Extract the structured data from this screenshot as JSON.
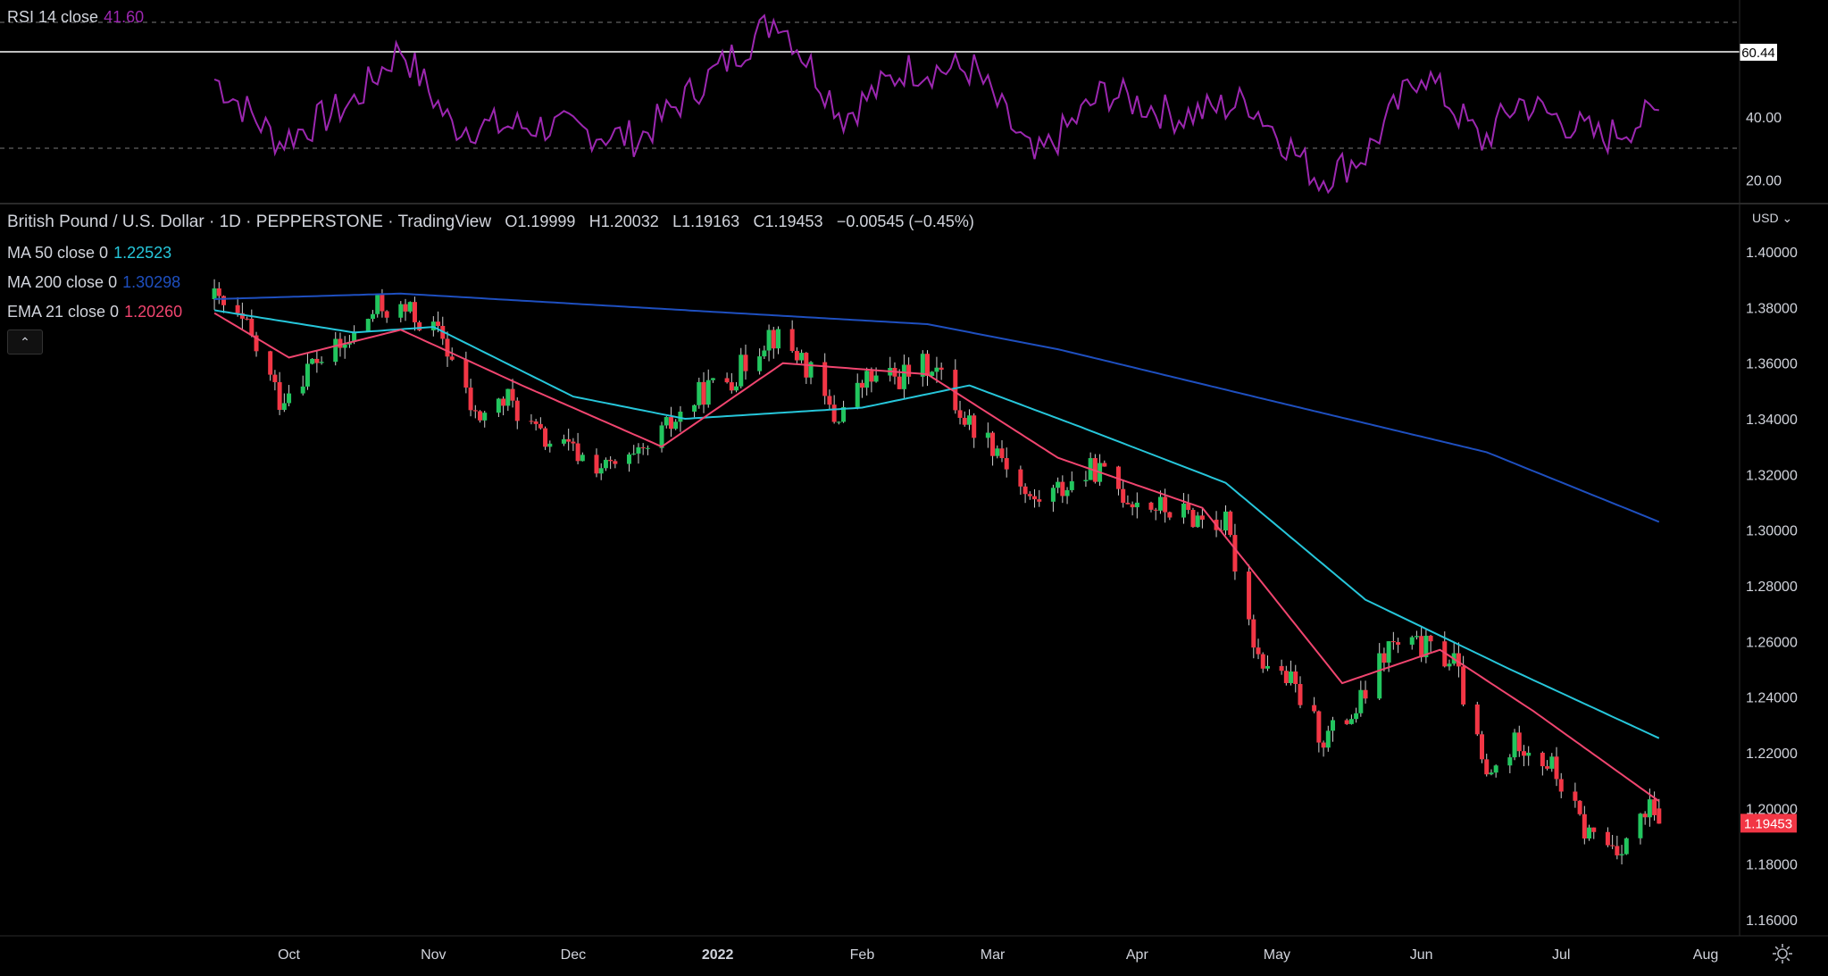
{
  "rsi_pane": {
    "label": "RSI 14 close",
    "value": "41.60",
    "value_color": "#9c27b0",
    "line_color": "#9c27b0",
    "upper_band": 70,
    "lower_band": 30,
    "ticks": [
      "40.00",
      "20.00"
    ],
    "marker_value": "60.44"
  },
  "main_pane": {
    "symbol": "British Pound / U.S. Dollar",
    "interval": "1D",
    "broker": "PEPPERSTONE",
    "source": "TradingView",
    "ohlc": {
      "o": "O1.19999",
      "h": "H1.20032",
      "l": "L1.19163",
      "c": "C1.19453",
      "change": "−0.00545 (−0.45%)"
    },
    "currency": "USD",
    "last_price": "1.19453",
    "last_price_color": "#f23645",
    "indicators": [
      {
        "label": "MA 50 close 0",
        "value": "1.22523",
        "color": "#26c6da"
      },
      {
        "label": "MA 200 close 0",
        "value": "1.30298",
        "color": "#1e4fbf"
      },
      {
        "label": "EMA 21 close 0",
        "value": "1.20260",
        "color": "#f0456f"
      }
    ],
    "price_ticks": [
      "1.40000",
      "1.38000",
      "1.36000",
      "1.34000",
      "1.32000",
      "1.30000",
      "1.28000",
      "1.26000",
      "1.24000",
      "1.22000",
      "1.20000",
      "1.18000",
      "1.16000"
    ],
    "time_ticks": [
      "Oct",
      "Nov",
      "Dec",
      "2022",
      "Feb",
      "Mar",
      "Apr",
      "May",
      "Jun",
      "Jul",
      "Aug"
    ],
    "collapse_icon": "chevron-up-icon",
    "settings_icon": "gear-icon"
  },
  "chart_data": {
    "type": "candlestick",
    "symbol": "GBPUSD",
    "ylim": [
      1.155,
      1.405
    ],
    "up_color": "#22c55e",
    "down_color": "#f23645",
    "closes": [
      {
        "d": "2021-09-15",
        "c": 1.383
      },
      {
        "d": "2021-09-22",
        "c": 1.372
      },
      {
        "d": "2021-09-29",
        "c": 1.347
      },
      {
        "d": "2021-10-06",
        "c": 1.36
      },
      {
        "d": "2021-10-13",
        "c": 1.366
      },
      {
        "d": "2021-10-20",
        "c": 1.38
      },
      {
        "d": "2021-10-27",
        "c": 1.378
      },
      {
        "d": "2021-11-03",
        "c": 1.369
      },
      {
        "d": "2021-11-10",
        "c": 1.34
      },
      {
        "d": "2021-11-17",
        "c": 1.347
      },
      {
        "d": "2021-11-24",
        "c": 1.333
      },
      {
        "d": "2021-12-01",
        "c": 1.328
      },
      {
        "d": "2021-12-08",
        "c": 1.322
      },
      {
        "d": "2021-12-15",
        "c": 1.325
      },
      {
        "d": "2021-12-22",
        "c": 1.338
      },
      {
        "d": "2021-12-29",
        "c": 1.35
      },
      {
        "d": "2022-01-05",
        "c": 1.356
      },
      {
        "d": "2022-01-12",
        "c": 1.371
      },
      {
        "d": "2022-01-19",
        "c": 1.362
      },
      {
        "d": "2022-01-26",
        "c": 1.34
      },
      {
        "d": "2022-02-02",
        "c": 1.354
      },
      {
        "d": "2022-02-09",
        "c": 1.355
      },
      {
        "d": "2022-02-16",
        "c": 1.36
      },
      {
        "d": "2022-02-23",
        "c": 1.34
      },
      {
        "d": "2022-03-02",
        "c": 1.33
      },
      {
        "d": "2022-03-09",
        "c": 1.31
      },
      {
        "d": "2022-03-16",
        "c": 1.315
      },
      {
        "d": "2022-03-23",
        "c": 1.322
      },
      {
        "d": "2022-03-30",
        "c": 1.312
      },
      {
        "d": "2022-04-06",
        "c": 1.308
      },
      {
        "d": "2022-04-13",
        "c": 1.305
      },
      {
        "d": "2022-04-20",
        "c": 1.302
      },
      {
        "d": "2022-04-27",
        "c": 1.255
      },
      {
        "d": "2022-05-04",
        "c": 1.245
      },
      {
        "d": "2022-05-11",
        "c": 1.225
      },
      {
        "d": "2022-05-18",
        "c": 1.235
      },
      {
        "d": "2022-05-25",
        "c": 1.258
      },
      {
        "d": "2022-06-01",
        "c": 1.258
      },
      {
        "d": "2022-06-08",
        "c": 1.253
      },
      {
        "d": "2022-06-15",
        "c": 1.21
      },
      {
        "d": "2022-06-22",
        "c": 1.225
      },
      {
        "d": "2022-06-29",
        "c": 1.215
      },
      {
        "d": "2022-07-06",
        "c": 1.192
      },
      {
        "d": "2022-07-13",
        "c": 1.186
      },
      {
        "d": "2022-07-20",
        "c": 1.199
      },
      {
        "d": "2022-07-22",
        "c": 1.19453
      }
    ],
    "ma50": [
      {
        "d": "2021-09-15",
        "v": 1.379
      },
      {
        "d": "2021-10-15",
        "v": 1.371
      },
      {
        "d": "2021-11-01",
        "v": 1.373
      },
      {
        "d": "2021-12-01",
        "v": 1.348
      },
      {
        "d": "2021-12-25",
        "v": 1.34
      },
      {
        "d": "2022-02-01",
        "v": 1.344
      },
      {
        "d": "2022-02-24",
        "v": 1.352
      },
      {
        "d": "2022-03-20",
        "v": 1.337
      },
      {
        "d": "2022-04-20",
        "v": 1.317
      },
      {
        "d": "2022-05-20",
        "v": 1.275
      },
      {
        "d": "2022-06-20",
        "v": 1.25
      },
      {
        "d": "2022-07-22",
        "v": 1.22523
      }
    ],
    "ma200": [
      {
        "d": "2021-09-15",
        "v": 1.383
      },
      {
        "d": "2021-10-25",
        "v": 1.385
      },
      {
        "d": "2021-12-15",
        "v": 1.38
      },
      {
        "d": "2022-02-15",
        "v": 1.374
      },
      {
        "d": "2022-03-15",
        "v": 1.365
      },
      {
        "d": "2022-05-01",
        "v": 1.346
      },
      {
        "d": "2022-06-15",
        "v": 1.328
      },
      {
        "d": "2022-07-22",
        "v": 1.30298
      }
    ],
    "ema21": [
      {
        "d": "2021-09-15",
        "v": 1.378
      },
      {
        "d": "2021-10-01",
        "v": 1.362
      },
      {
        "d": "2021-10-25",
        "v": 1.372
      },
      {
        "d": "2021-11-20",
        "v": 1.352
      },
      {
        "d": "2021-12-20",
        "v": 1.33
      },
      {
        "d": "2022-01-15",
        "v": 1.36
      },
      {
        "d": "2022-02-15",
        "v": 1.356
      },
      {
        "d": "2022-03-15",
        "v": 1.326
      },
      {
        "d": "2022-04-15",
        "v": 1.308
      },
      {
        "d": "2022-05-15",
        "v": 1.245
      },
      {
        "d": "2022-06-05",
        "v": 1.257
      },
      {
        "d": "2022-06-25",
        "v": 1.235
      },
      {
        "d": "2022-07-22",
        "v": 1.2026
      }
    ],
    "rsi": [
      {
        "d": "2021-09-15",
        "v": 52
      },
      {
        "d": "2021-09-29",
        "v": 32
      },
      {
        "d": "2021-10-15",
        "v": 45
      },
      {
        "d": "2021-10-25",
        "v": 62
      },
      {
        "d": "2021-11-05",
        "v": 37
      },
      {
        "d": "2021-11-25",
        "v": 37
      },
      {
        "d": "2021-12-15",
        "v": 33
      },
      {
        "d": "2022-01-01",
        "v": 55
      },
      {
        "d": "2022-01-14",
        "v": 72
      },
      {
        "d": "2022-01-28",
        "v": 40
      },
      {
        "d": "2022-02-10",
        "v": 55
      },
      {
        "d": "2022-02-25",
        "v": 55
      },
      {
        "d": "2022-03-10",
        "v": 26
      },
      {
        "d": "2022-03-25",
        "v": 48
      },
      {
        "d": "2022-04-10",
        "v": 40
      },
      {
        "d": "2022-04-25",
        "v": 45
      },
      {
        "d": "2022-05-10",
        "v": 20
      },
      {
        "d": "2022-05-20",
        "v": 28
      },
      {
        "d": "2022-06-01",
        "v": 55
      },
      {
        "d": "2022-06-14",
        "v": 32
      },
      {
        "d": "2022-06-22",
        "v": 45
      },
      {
        "d": "2022-07-10",
        "v": 33
      },
      {
        "d": "2022-07-22",
        "v": 41.6
      }
    ]
  }
}
